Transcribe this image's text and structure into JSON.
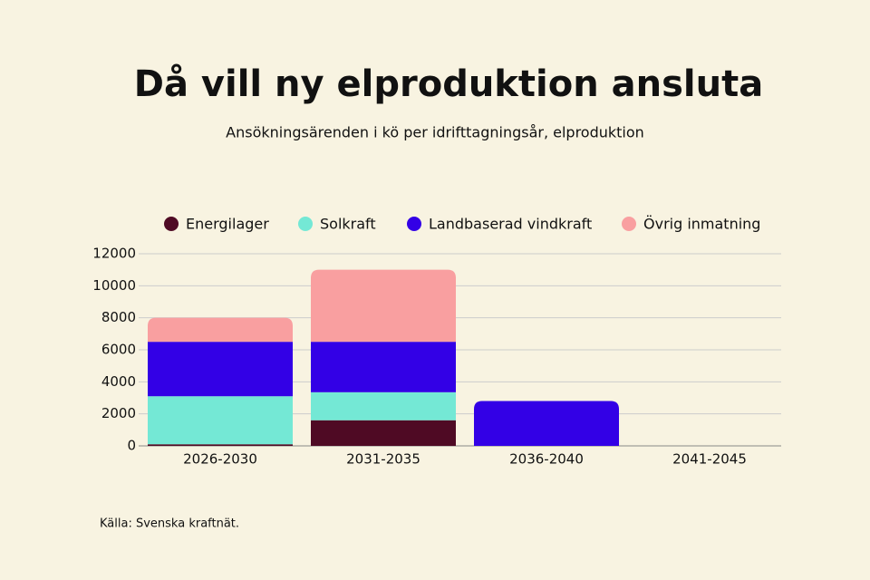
{
  "chart_data": {
    "type": "stacked-bar",
    "title": "Då vill ny elproduktion ansluta",
    "subtitle": "Ansökningsärenden i kö per idrifttagningsår, elproduktion",
    "source": "Källa: Svenska kraftnät.",
    "categories": [
      "2026-2030",
      "2031-2035",
      "2036-2040",
      "2041-2045"
    ],
    "series": [
      {
        "name": "Energilager",
        "color": "#4f0a24",
        "values": [
          100,
          1600,
          0,
          0
        ]
      },
      {
        "name": "Solkraft",
        "color": "#74e8d5",
        "values": [
          3000,
          1750,
          0,
          0
        ]
      },
      {
        "name": "Landbaserad vindkraft",
        "color": "#3300e6",
        "values": [
          3400,
          3150,
          2800,
          0
        ]
      },
      {
        "name": "Övrig inmatning",
        "color": "#f99fa0",
        "values": [
          1500,
          4500,
          0,
          0
        ]
      }
    ],
    "ylim": [
      0,
      12000
    ],
    "yticks": [
      0,
      2000,
      4000,
      6000,
      8000,
      10000,
      12000
    ],
    "grid": true
  }
}
